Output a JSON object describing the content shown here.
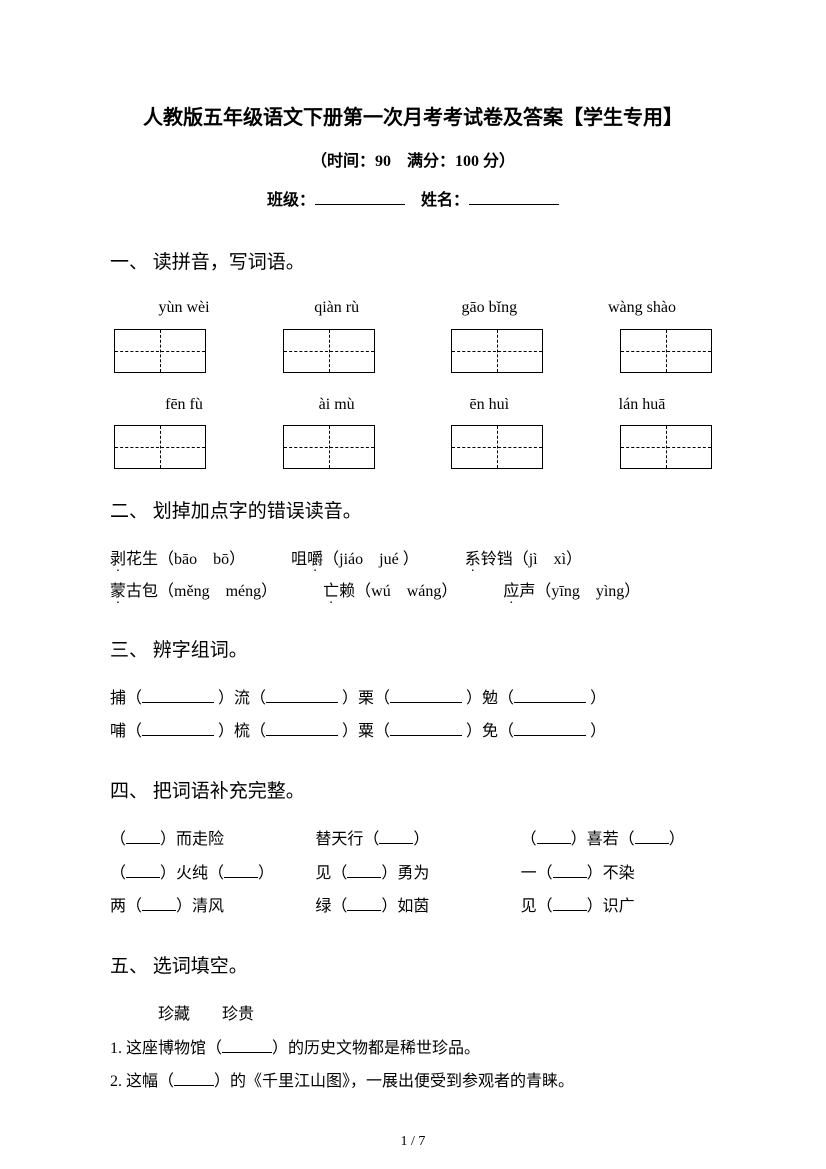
{
  "title": "人教版五年级语文下册第一次月考考试卷及答案【学生专用】",
  "subtitle": "（时间：90　满分：100 分）",
  "meta": {
    "class_label": "班级：",
    "name_label": "姓名："
  },
  "sections": {
    "s1": {
      "heading": "一、 读拼音，写词语。",
      "row1": [
        "yùn wèi",
        "qiàn rù",
        "gāo bǐng",
        "wàng shào"
      ],
      "row2": [
        "fēn fù",
        "ài mù",
        "ēn huì",
        "lán huā"
      ]
    },
    "s2": {
      "heading": "二、 划掉加点字的错误读音。",
      "items": [
        {
          "pre": "",
          "dot": "剥",
          "rest": "花生（bāo　bō）"
        },
        {
          "pre": "咀",
          "dot": "嚼",
          "rest": "（jiáo　jué ）"
        },
        {
          "pre": "",
          "dot": "系",
          "rest": "铃铛（jì　xì）"
        },
        {
          "pre": "",
          "dot": "蒙",
          "rest": "古包（měng　méng）"
        },
        {
          "pre": "",
          "dot": "亡",
          "rest": "赖（wú　wáng）"
        },
        {
          "pre": "",
          "dot": "应",
          "rest": "声（yīng　yìng）"
        }
      ]
    },
    "s3": {
      "heading": "三、 辨字组词。",
      "line1": [
        "捕（",
        "）流（",
        "）栗（",
        "）勉（",
        "）"
      ],
      "line2": [
        "哺（",
        "）梳（",
        "）粟（",
        "）免（",
        "）"
      ]
    },
    "s4": {
      "heading": "四、 把词语补充完整。",
      "items": [
        "（____）而走险",
        "替天行（____）",
        "（____）喜若（____）",
        "（____）火纯（____）",
        "见（____）勇为",
        "一（____）不染",
        "两（____）清风",
        "绿（____）如茵",
        "见（____）识广"
      ]
    },
    "s5": {
      "heading": "五、 选词填空。",
      "words": "珍藏　　珍贵",
      "q1_pre": "1. 这座博物馆（",
      "q1_post": "）的历史文物都是稀世珍品。",
      "q2_pre": "2. 这幅（",
      "q2_post": "）的《千里江山图》，一展出便受到参观者的青睐。"
    }
  },
  "footer": "1  /  7"
}
